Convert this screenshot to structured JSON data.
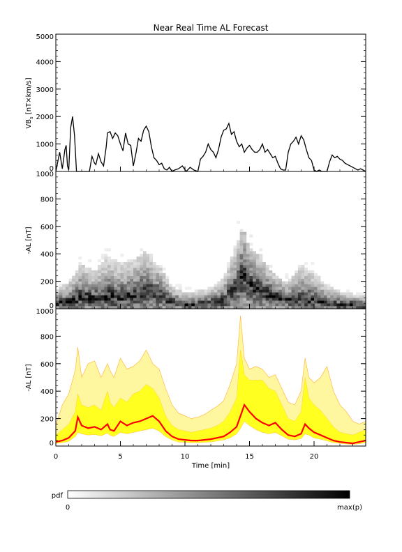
{
  "chart_data": [
    {
      "type": "line",
      "panel": "vbs",
      "title": "Near Real Time AL Forecast",
      "ylabel": "VB_s [nT×km/s]",
      "ylabel_main": "VB",
      "ylabel_sub": "s",
      "ylabel_rest": " [nT×km/s]",
      "ylim": [
        0,
        5000
      ],
      "yticks": [
        "0",
        "1000",
        "2000",
        "3000",
        "4000",
        "5000"
      ],
      "xlim": [
        0,
        24
      ],
      "color": "#000000",
      "series": [
        {
          "x": [
            0,
            0.3,
            0.5,
            0.7,
            0.8,
            0.9,
            1.0,
            1.15,
            1.3,
            1.45,
            1.6,
            1.75,
            1.9,
            2.1,
            2.4,
            2.6,
            2.8,
            3.0,
            3.1,
            3.3,
            3.5,
            3.7,
            3.9,
            4.0,
            4.2,
            4.4,
            4.6,
            4.8,
            5.0,
            5.2,
            5.4,
            5.6,
            5.8,
            6.0,
            6.2,
            6.4,
            6.6,
            6.8,
            7.0,
            7.2,
            7.4,
            7.6,
            7.8,
            8.0,
            8.2,
            8.4,
            8.6,
            8.8,
            9.0,
            9.2,
            9.5,
            9.8,
            10.1,
            10.4,
            10.7,
            11.0,
            11.2,
            11.4,
            11.6,
            11.8,
            12.0,
            12.2,
            12.4,
            12.6,
            12.8,
            13.0,
            13.2,
            13.4,
            13.6,
            13.8,
            14.0,
            14.2,
            14.4,
            14.6,
            14.8,
            15.0,
            15.2,
            15.4,
            15.6,
            15.8,
            16.0,
            16.2,
            16.4,
            16.6,
            16.8,
            17.0,
            17.2,
            17.4,
            17.6,
            17.8,
            18.0,
            18.2,
            18.4,
            18.6,
            18.8,
            19.0,
            19.2,
            19.4,
            19.6,
            19.8,
            20.0,
            20.2,
            20.4,
            20.6,
            20.8,
            21.0,
            21.2,
            21.4,
            21.6,
            21.8,
            22.0,
            22.2,
            22.4,
            22.6,
            22.8,
            23.0,
            23.2,
            23.4,
            23.6,
            23.8,
            24.0
          ],
          "values": [
            0,
            700,
            100,
            800,
            950,
            200,
            50,
            1600,
            2000,
            1300,
            0,
            0,
            0,
            0,
            0,
            0,
            550,
            300,
            250,
            650,
            350,
            200,
            900,
            1400,
            1450,
            1200,
            1400,
            1300,
            1000,
            750,
            1400,
            1000,
            950,
            200,
            650,
            1200,
            1100,
            1500,
            1650,
            1450,
            900,
            500,
            400,
            250,
            300,
            100,
            50,
            150,
            0,
            50,
            100,
            200,
            0,
            150,
            50,
            0,
            450,
            550,
            700,
            1000,
            800,
            700,
            500,
            800,
            1250,
            1500,
            1550,
            1750,
            1350,
            1450,
            1100,
            900,
            1000,
            700,
            850,
            950,
            800,
            700,
            700,
            800,
            1000,
            700,
            800,
            650,
            500,
            550,
            300,
            100,
            50,
            50,
            700,
            1000,
            1100,
            1250,
            1000,
            1300,
            1150,
            800,
            500,
            400,
            50,
            0,
            50,
            0,
            0,
            0,
            350,
            600,
            500,
            550,
            450,
            400,
            300,
            250,
            200,
            150,
            100,
            50,
            100,
            50,
            0
          ]
        }
      ]
    },
    {
      "type": "heatmap",
      "panel": "pdf",
      "ylabel": "-AL [nT]",
      "ylim": [
        0,
        1000
      ],
      "yticks": [
        "0",
        "200",
        "400",
        "600",
        "800",
        "1000"
      ],
      "xlim": [
        0,
        24
      ],
      "cell_width_min": 0.25,
      "cell_height_nT": 20,
      "ridge": {
        "x": [
          0,
          1,
          2,
          3,
          4,
          5,
          6,
          7,
          8,
          9,
          10,
          11,
          12,
          13,
          14,
          14.5,
          15,
          16,
          17,
          18,
          19,
          20,
          21,
          22,
          23,
          24
        ],
        "values": [
          40,
          50,
          90,
          70,
          90,
          80,
          100,
          120,
          100,
          50,
          30,
          30,
          40,
          60,
          150,
          250,
          180,
          120,
          90,
          60,
          80,
          60,
          40,
          30,
          30,
          20
        ]
      },
      "spread": {
        "x": [
          0,
          1,
          2,
          3,
          4,
          5,
          6,
          7,
          8,
          9,
          10,
          11,
          12,
          13,
          14,
          14.5,
          15,
          16,
          17,
          18,
          19,
          20,
          21,
          22,
          23,
          24
        ],
        "values": [
          120,
          180,
          300,
          250,
          350,
          300,
          330,
          380,
          280,
          150,
          110,
          120,
          140,
          200,
          420,
          550,
          400,
          330,
          220,
          170,
          300,
          240,
          160,
          120,
          100,
          90
        ]
      }
    },
    {
      "type": "area",
      "panel": "forecast",
      "ylabel": "-AL [nT]",
      "xlabel": "Time [min]",
      "ylim": [
        0,
        1000
      ],
      "yticks": [
        "0",
        "200",
        "400",
        "600",
        "800",
        "1000"
      ],
      "xlim": [
        0,
        24
      ],
      "xticks": [
        "0",
        "5",
        "10",
        "15",
        "20"
      ],
      "xtick_values": [
        0,
        5,
        10,
        15,
        20
      ],
      "colors": {
        "median": "#ff0000",
        "band": "#ffff20",
        "outer": "#ffb030"
      },
      "x": [
        0,
        0.5,
        1.0,
        1.5,
        1.7,
        2.0,
        2.5,
        3.0,
        3.5,
        4.0,
        4.2,
        4.5,
        5.0,
        5.5,
        6.0,
        6.5,
        7.0,
        7.5,
        8.0,
        8.5,
        9.0,
        9.5,
        10.0,
        10.5,
        11.0,
        11.5,
        12.0,
        12.5,
        13.0,
        13.5,
        14.0,
        14.3,
        14.6,
        15.0,
        15.5,
        16.0,
        16.5,
        17.0,
        17.5,
        18.0,
        18.5,
        19.0,
        19.3,
        19.6,
        20.0,
        20.5,
        21.0,
        21.5,
        22.0,
        22.5,
        23.0,
        23.5,
        24.0
      ],
      "series": [
        {
          "name": "median",
          "values": [
            30,
            40,
            60,
            110,
            210,
            150,
            130,
            140,
            120,
            160,
            120,
            110,
            180,
            150,
            170,
            180,
            200,
            220,
            180,
            110,
            70,
            50,
            45,
            40,
            40,
            45,
            50,
            60,
            70,
            100,
            140,
            220,
            300,
            250,
            200,
            170,
            150,
            170,
            120,
            80,
            70,
            90,
            160,
            130,
            100,
            80,
            60,
            40,
            30,
            25,
            20,
            30,
            40
          ]
        },
        {
          "name": "band_low",
          "values": [
            20,
            25,
            35,
            70,
            100,
            90,
            80,
            85,
            75,
            95,
            80,
            70,
            100,
            90,
            100,
            110,
            120,
            130,
            110,
            70,
            45,
            30,
            28,
            25,
            25,
            28,
            30,
            38,
            45,
            60,
            90,
            130,
            180,
            150,
            120,
            100,
            90,
            100,
            75,
            50,
            45,
            55,
            90,
            80,
            60,
            50,
            38,
            25,
            20,
            15,
            12,
            18,
            25
          ]
        },
        {
          "name": "band_high",
          "values": [
            80,
            120,
            160,
            250,
            380,
            300,
            280,
            300,
            260,
            400,
            320,
            280,
            350,
            320,
            380,
            400,
            450,
            420,
            350,
            220,
            150,
            120,
            110,
            100,
            110,
            120,
            130,
            150,
            180,
            250,
            350,
            700,
            520,
            480,
            480,
            480,
            420,
            400,
            300,
            200,
            180,
            250,
            500,
            350,
            300,
            260,
            200,
            140,
            100,
            90,
            80,
            100,
            120
          ]
        },
        {
          "name": "outer_high",
          "values": [
            150,
            300,
            380,
            550,
            720,
            500,
            600,
            620,
            500,
            600,
            550,
            500,
            640,
            560,
            580,
            620,
            700,
            600,
            560,
            420,
            300,
            240,
            220,
            200,
            210,
            230,
            260,
            290,
            330,
            450,
            600,
            950,
            640,
            560,
            580,
            560,
            500,
            520,
            420,
            320,
            300,
            400,
            640,
            500,
            460,
            500,
            580,
            400,
            300,
            250,
            180,
            160,
            180
          ]
        }
      ]
    }
  ],
  "colorbar": {
    "label": "pdf",
    "min_label": "0",
    "max_label": "max(p)"
  }
}
